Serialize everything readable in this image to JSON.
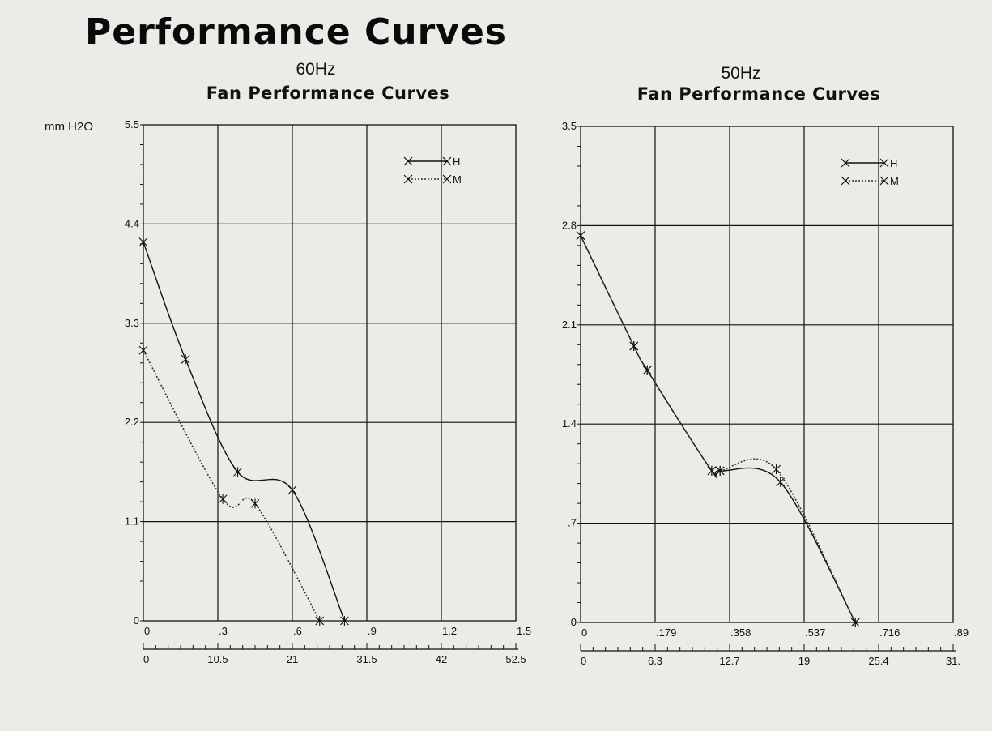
{
  "title": "Performance Curves",
  "chart_data": [
    {
      "type": "line",
      "frequency": "60Hz",
      "title": "Fan Performance Curves",
      "ylabel": "mm H2O",
      "ylim": [
        0,
        5.5
      ],
      "y_ticks": [
        "0",
        "1.1",
        "2.2",
        "3.3",
        "4.4",
        "5.5"
      ],
      "xlim": [
        0,
        1.5
      ],
      "x_ticks": [
        "0",
        ".3",
        ".6",
        ".9",
        "1.2",
        "1.5"
      ],
      "x2_ticks": [
        "0",
        "10.5",
        "21",
        "31.5",
        "42",
        "52.5"
      ],
      "legend": [
        "H",
        "M"
      ],
      "legend_position": "top-right",
      "grid": true,
      "series": [
        {
          "name": "H",
          "style": "solid",
          "x": [
            0,
            0.17,
            0.38,
            0.6,
            0.81
          ],
          "y": [
            4.2,
            2.9,
            1.65,
            1.45,
            0
          ]
        },
        {
          "name": "M",
          "style": "dotted",
          "x": [
            0,
            0.32,
            0.45,
            0.71
          ],
          "y": [
            3.0,
            1.35,
            1.3,
            0
          ]
        }
      ]
    },
    {
      "type": "line",
      "frequency": "50Hz",
      "title": "Fan Performance Curves",
      "ylabel": "",
      "ylim": [
        0,
        3.5
      ],
      "y_ticks": [
        "0",
        ".7",
        "1.4",
        "2.1",
        "2.8",
        "3.5"
      ],
      "xlim": [
        0,
        0.895
      ],
      "x_ticks": [
        "0",
        ".179",
        ".358",
        ".537",
        ".716",
        ".89"
      ],
      "x2_ticks": [
        "0",
        "6.3",
        "12.7",
        "19",
        "25.4",
        "31."
      ],
      "legend": [
        "H",
        "M"
      ],
      "legend_position": "top-right",
      "grid": true,
      "series": [
        {
          "name": "H",
          "style": "solid",
          "x": [
            0,
            0.128,
            0.16,
            0.315,
            0.335,
            0.48,
            0.66
          ],
          "y": [
            2.73,
            1.95,
            1.78,
            1.07,
            1.07,
            0.99,
            0
          ]
        },
        {
          "name": "M",
          "style": "dotted",
          "x": [
            0,
            0.128,
            0.16,
            0.315,
            0.335,
            0.47,
            0.66
          ],
          "y": [
            2.73,
            1.95,
            1.78,
            1.07,
            1.07,
            1.08,
            0
          ]
        }
      ]
    }
  ]
}
